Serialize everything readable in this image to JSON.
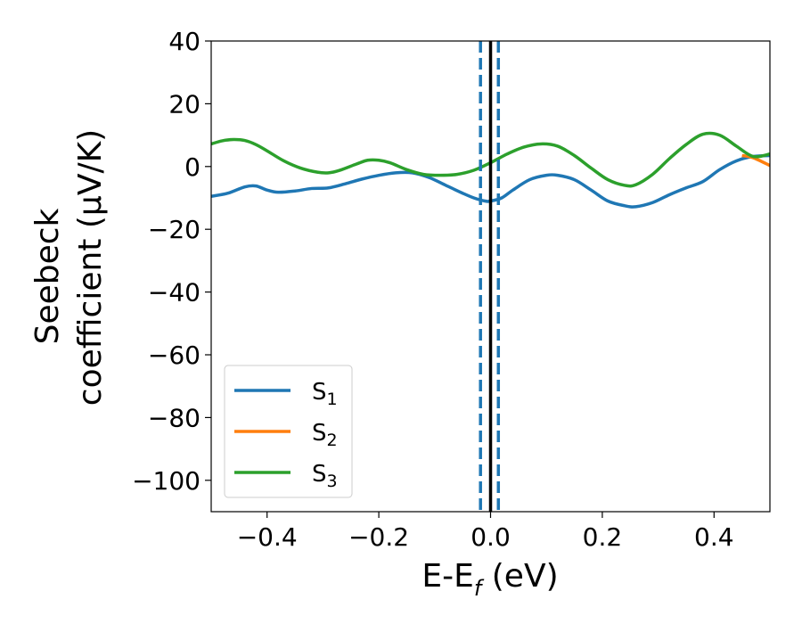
{
  "chart_data": {
    "type": "line",
    "xlabel": {
      "main": "E-E",
      "sub": "f",
      "tail": " (eV)"
    },
    "ylabel": {
      "line1": "Seebeck",
      "line2": "coefficient  (μV/K)"
    },
    "xlim": [
      -0.5,
      0.5
    ],
    "ylim": [
      -110,
      40
    ],
    "xticks": [
      -0.4,
      -0.2,
      0.0,
      0.2,
      0.4
    ],
    "xtick_labels": [
      "−0.4",
      "−0.2",
      "0.0",
      "0.2",
      "0.4"
    ],
    "yticks": [
      40,
      20,
      0,
      -20,
      -40,
      -60,
      -80,
      -100
    ],
    "ytick_labels": [
      "40",
      "20",
      "0",
      "−20",
      "−40",
      "−60",
      "−80",
      "−100"
    ],
    "grid": false,
    "legend_position": "lower-left",
    "series": [
      {
        "name": "S1",
        "label_main": "S",
        "label_sub": "1",
        "color": "#1f77b4",
        "x": [
          -0.5,
          -0.47,
          -0.44,
          -0.42,
          -0.4,
          -0.38,
          -0.35,
          -0.32,
          -0.29,
          -0.26,
          -0.23,
          -0.2,
          -0.17,
          -0.14,
          -0.11,
          -0.08,
          -0.05,
          -0.03,
          -0.01,
          0.0,
          0.02,
          0.04,
          0.07,
          0.1,
          0.12,
          0.15,
          0.18,
          0.21,
          0.24,
          0.26,
          0.29,
          0.32,
          0.35,
          0.38,
          0.41,
          0.44,
          0.47,
          0.5
        ],
        "y": [
          -9.5,
          -8.5,
          -6.5,
          -6.2,
          -7.5,
          -8.2,
          -7.8,
          -7.0,
          -6.8,
          -5.5,
          -4.0,
          -2.8,
          -2.0,
          -2.0,
          -3.5,
          -6.0,
          -8.5,
          -10.0,
          -11.0,
          -11.0,
          -10.0,
          -7.5,
          -4.2,
          -2.8,
          -2.8,
          -4.2,
          -7.5,
          -11.0,
          -12.5,
          -12.8,
          -11.5,
          -9.0,
          -6.8,
          -4.8,
          -1.0,
          1.8,
          3.2,
          3.5
        ]
      },
      {
        "name": "S2",
        "label_main": "S",
        "label_sub": "2",
        "color": "#ff7f0e",
        "x": [
          0.45,
          0.47,
          0.5
        ],
        "y": [
          3.5,
          2.8,
          0.3
        ]
      },
      {
        "name": "S3",
        "label_main": "S",
        "label_sub": "3",
        "color": "#2ca02c",
        "x": [
          -0.5,
          -0.48,
          -0.46,
          -0.44,
          -0.42,
          -0.4,
          -0.37,
          -0.34,
          -0.31,
          -0.29,
          -0.27,
          -0.24,
          -0.22,
          -0.2,
          -0.18,
          -0.15,
          -0.12,
          -0.09,
          -0.06,
          -0.03,
          0.0,
          0.03,
          0.06,
          0.09,
          0.12,
          0.15,
          0.18,
          0.21,
          0.24,
          0.26,
          0.29,
          0.32,
          0.35,
          0.38,
          0.41,
          0.44,
          0.47,
          0.5
        ],
        "y": [
          7.2,
          8.2,
          8.6,
          8.3,
          7.0,
          5.0,
          1.8,
          -0.5,
          -1.8,
          -2.0,
          -1.2,
          0.8,
          2.0,
          2.0,
          1.2,
          -1.0,
          -2.5,
          -2.8,
          -2.5,
          -1.2,
          1.2,
          4.0,
          6.2,
          7.2,
          6.5,
          3.5,
          -0.5,
          -4.2,
          -6.0,
          -5.8,
          -2.5,
          2.5,
          7.0,
          10.3,
          10.0,
          6.5,
          3.2,
          4.0
        ]
      }
    ],
    "vlines": [
      {
        "x": -0.018,
        "style": "dashed",
        "color": "#1f77b4"
      },
      {
        "x": 0.0,
        "style": "solid",
        "color": "#000000"
      },
      {
        "x": 0.014,
        "style": "dashed",
        "color": "#1f77b4"
      }
    ]
  }
}
